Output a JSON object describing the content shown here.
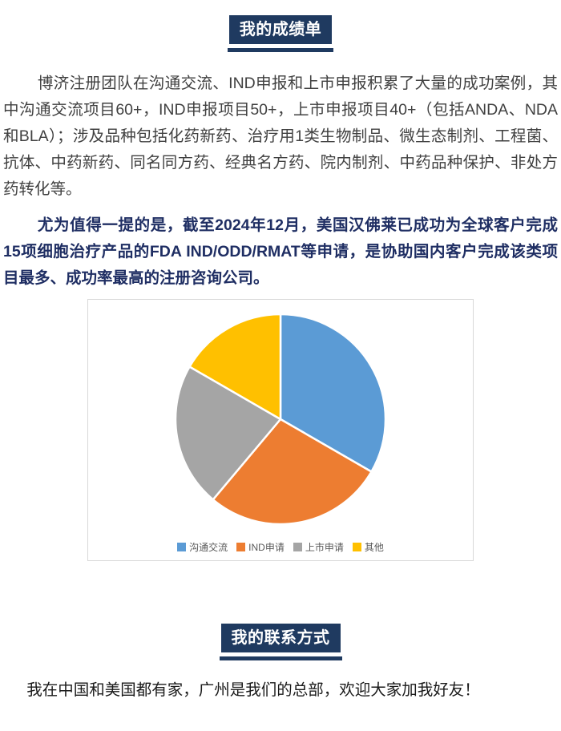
{
  "report_card_section": {
    "badge_label": "我的成绩单",
    "intro_paragraph": "博济注册团队在沟通交流、IND申报和上市申报积累了大量的成功案例，其中沟通交流项目60+，IND申报项目50+，上市申报项目40+（包括ANDA、NDA和BLA）；涉及品种包括化药新药、治疗用1类生物制品、微生态制剂、工程菌、抗体、中药新药、同名同方药、经典名方药、院内制剂、中药品种保护、非处方药转化等。",
    "highlight_paragraph": "尤为值得一提的是，截至2024年12月，美国汉佛莱已成功为全球客户完成15项细胞治疗产品的FDA IND/ODD/RMAT等申请，是协助国内客户完成该类项目最多、成功率最高的注册咨询公司。"
  },
  "chart_data": {
    "type": "pie",
    "categories": [
      "沟通交流",
      "IND申请",
      "上市申请",
      "其他"
    ],
    "values": [
      60,
      50,
      40,
      30
    ],
    "percentages": [
      33.3,
      27.8,
      22.2,
      16.7
    ],
    "colors": [
      "#5b9bd5",
      "#ed7d31",
      "#a5a5a5",
      "#ffc000"
    ],
    "title": "",
    "legend_position": "bottom",
    "start_angle": "top",
    "direction": "clockwise"
  },
  "contact_section": {
    "badge_label": "我的联系方式",
    "paragraph": "我在中国和美国都有家，广州是我们的总部，欢迎大家加我好友！"
  },
  "colors": {
    "badge_background": "#1f3a60",
    "highlight_text": "#1f2e63",
    "body_text": "#404040",
    "contact_text": "#1a1a1a",
    "chart_border": "#d9d9d9",
    "legend_text": "#595959",
    "pie_slice_divider": "#ffffff"
  }
}
